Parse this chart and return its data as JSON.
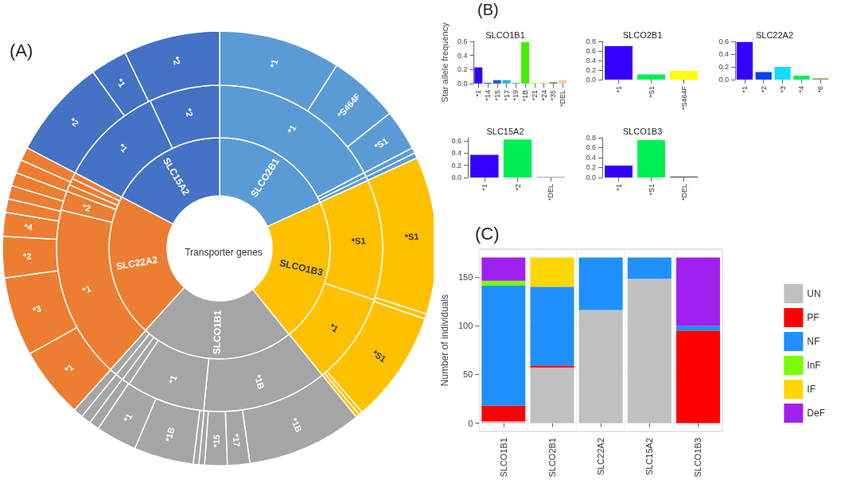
{
  "chart_data": [
    {
      "type": "donut",
      "title": "Transporter genes",
      "annotations": [
        "(A)"
      ],
      "categories": [
        "SLCO2B1",
        "SLCO1B3",
        "SLCO1B1",
        "SLC22A2",
        "SLC15A2"
      ],
      "values": [
        18.2,
        21,
        22.5,
        21,
        17.3
      ],
      "colors": [
        "#5b9bd5",
        "#ffc000",
        "#a5a5a5",
        "#ed7d31",
        "#4472c4"
      ]
    },
    {
      "type": "donut",
      "categories": [
        "*1",
        null,
        null,
        "*S1",
        "*1",
        "*1B",
        "*1",
        null,
        null,
        null,
        "*1",
        "*2",
        null,
        null,
        null,
        "*1",
        "*2"
      ],
      "values": [
        17.33,
        0.42,
        0.42,
        11.94,
        9.06,
        12.39,
        7.81,
        0.78,
        0.78,
        0.74,
        17.11,
        1.92,
        0.67,
        0.67,
        0.63,
        10.33,
        7.0
      ],
      "colors": [
        "#5b9bd5",
        "#5b9bd5",
        "#5b9bd5",
        "#ffc000",
        "#ffc000",
        "#a5a5a5",
        "#a5a5a5",
        "#a5a5a5",
        "#a5a5a5",
        "#a5a5a5",
        "#ed7d31",
        "#ed7d31",
        "#ed7d31",
        "#ed7d31",
        "#ed7d31",
        "#4472c4",
        "#4472c4"
      ]
    },
    {
      "type": "donut",
      "categories": [
        "*1",
        "*S464F",
        "*S1",
        null,
        null,
        "*S1",
        null,
        "*S1",
        null,
        null,
        "*1B",
        "*17",
        "*15",
        null,
        null,
        "*1B",
        "*1",
        null,
        null,
        null,
        "*1",
        "*3",
        "*2",
        "*4",
        null,
        null,
        null,
        null,
        null,
        "*2",
        "*1",
        "*2"
      ],
      "values": [
        9.08,
        5.25,
        3.03,
        0.42,
        0.39,
        11.72,
        0.39,
        8.33,
        0.28,
        0.28,
        8.61,
        1.67,
        1.67,
        0.42,
        0.42,
        4.44,
        3.06,
        0.75,
        0.75,
        0.72,
        5.28,
        5.89,
        3.06,
        1.78,
        1.0,
        1.0,
        1.0,
        1.0,
        1.0,
        7.42,
        2.75,
        7.17
      ],
      "colors": [
        "#5b9bd5",
        "#5b9bd5",
        "#5b9bd5",
        "#5b9bd5",
        "#5b9bd5",
        "#ffc000",
        "#ffc000",
        "#ffc000",
        "#ffc000",
        "#ffc000",
        "#a5a5a5",
        "#a5a5a5",
        "#a5a5a5",
        "#a5a5a5",
        "#a5a5a5",
        "#a5a5a5",
        "#a5a5a5",
        "#a5a5a5",
        "#a5a5a5",
        "#a5a5a5",
        "#ed7d31",
        "#ed7d31",
        "#ed7d31",
        "#ed7d31",
        "#ed7d31",
        "#ed7d31",
        "#ed7d31",
        "#ed7d31",
        "#ed7d31",
        "#4472c4",
        "#4472c4",
        "#4472c4"
      ]
    },
    {
      "type": "bar",
      "title": "SLCO1B1",
      "ylabel": "Star allele frequency",
      "annotations": [
        "(B)"
      ],
      "categories": [
        "*1",
        "*14",
        "*15",
        "*17",
        "*19",
        "*1B",
        "*21",
        "*24",
        "*35",
        "*DEL"
      ],
      "values": [
        0.23,
        0.01,
        0.05,
        0.05,
        0.01,
        0.59,
        0.01,
        0.01,
        0.02,
        0.05
      ],
      "colors": [
        "#3300ff",
        "#2a2aff",
        "#1f5fd8",
        "#22bbdd",
        "#22cc88",
        "#44ee00",
        "#99ee44",
        "#cccc44",
        "#888855",
        "#f5cfa8"
      ],
      "ylim": [
        0,
        0.6
      ],
      "yticks": [
        {
          "value": 0,
          "label": "0.0"
        },
        {
          "value": 0.2,
          "label": "0.2"
        },
        {
          "value": 0.4,
          "label": "0.4"
        },
        {
          "value": 0.6,
          "label": "0.6"
        }
      ]
    },
    {
      "type": "bar",
      "title": "SLCO2B1",
      "categories": [
        "*1",
        "*S1",
        "*S464F"
      ],
      "values": [
        0.7,
        0.11,
        0.18
      ],
      "colors": [
        "#3300ff",
        "#00ee55",
        "#ffff00"
      ],
      "ylim": [
        0,
        0.8
      ],
      "yticks": [
        {
          "value": 0,
          "label": "0.0"
        },
        {
          "value": 0.2,
          "label": "0.2"
        },
        {
          "value": 0.4,
          "label": "0.4"
        },
        {
          "value": 0.6,
          "label": "0.6"
        },
        {
          "value": 0.8,
          "label": "0.8"
        }
      ]
    },
    {
      "type": "bar",
      "title": "SLC22A2",
      "categories": [
        "*1",
        "*2",
        "*3",
        "*4",
        "*6"
      ],
      "values": [
        0.59,
        0.12,
        0.2,
        0.06,
        0.02
      ],
      "colors": [
        "#3300ff",
        "#0044ee",
        "#11ddff",
        "#00ee55",
        "#999955"
      ],
      "ylim": [
        0,
        0.6
      ],
      "yticks": [
        {
          "value": 0,
          "label": "0.0"
        },
        {
          "value": 0.2,
          "label": "0.2"
        },
        {
          "value": 0.4,
          "label": "0.4"
        },
        {
          "value": 0.6,
          "label": "0.6"
        }
      ]
    },
    {
      "type": "bar",
      "title": "SLC15A2",
      "categories": [
        "*1",
        "*2",
        "*DEL"
      ],
      "values": [
        0.37,
        0.62,
        0.01
      ],
      "colors": [
        "#3300ff",
        "#00ee55",
        "#888888"
      ],
      "ylim": [
        0,
        0.65
      ],
      "yticks": [
        {
          "value": 0,
          "label": "0.0"
        },
        {
          "value": 0.2,
          "label": "0.2"
        },
        {
          "value": 0.4,
          "label": "0.4"
        },
        {
          "value": 0.6,
          "label": "0.6"
        }
      ]
    },
    {
      "type": "bar",
      "title": "SLCO1B3",
      "categories": [
        "*1",
        "*S1",
        "*DEL"
      ],
      "values": [
        0.24,
        0.75,
        0.02
      ],
      "colors": [
        "#3300ff",
        "#00ee55",
        "#555555"
      ],
      "ylim": [
        0,
        0.8
      ],
      "yticks": [
        {
          "value": 0,
          "label": "0.0"
        },
        {
          "value": 0.2,
          "label": "0.2"
        },
        {
          "value": 0.4,
          "label": "0.4"
        },
        {
          "value": 0.6,
          "label": "0.6"
        },
        {
          "value": 0.8,
          "label": "0.8"
        }
      ]
    },
    {
      "type": "bar",
      "stacked": true,
      "ylabel": "Number of individuals",
      "annotations": [
        "(C)"
      ],
      "categories": [
        "SLCO1B1",
        "SLCO2B1",
        "SLC22A2",
        "SLC15A2",
        "SLCO1B3"
      ],
      "series": [
        {
          "name": "UN",
          "color": "#c0c0c0",
          "values": [
            2,
            57,
            116,
            148,
            0
          ]
        },
        {
          "name": "PF",
          "color": "#ff0000",
          "values": [
            16,
            2,
            0,
            0,
            95
          ]
        },
        {
          "name": "NF",
          "color": "#1e90ff",
          "values": [
            123,
            81,
            54,
            22,
            5
          ]
        },
        {
          "name": "InF",
          "color": "#7cfc00",
          "values": [
            5,
            0,
            0,
            0,
            0
          ]
        },
        {
          "name": "IF",
          "color": "#ffd700",
          "values": [
            0,
            30,
            0,
            0,
            0
          ]
        },
        {
          "name": "DeF",
          "color": "#a020f0",
          "values": [
            24,
            0,
            0,
            0,
            70
          ]
        }
      ],
      "ylim": [
        -8.5,
        178.5
      ],
      "yticks": [
        0,
        50,
        100,
        150
      ],
      "grid": true,
      "legend": "right"
    }
  ]
}
